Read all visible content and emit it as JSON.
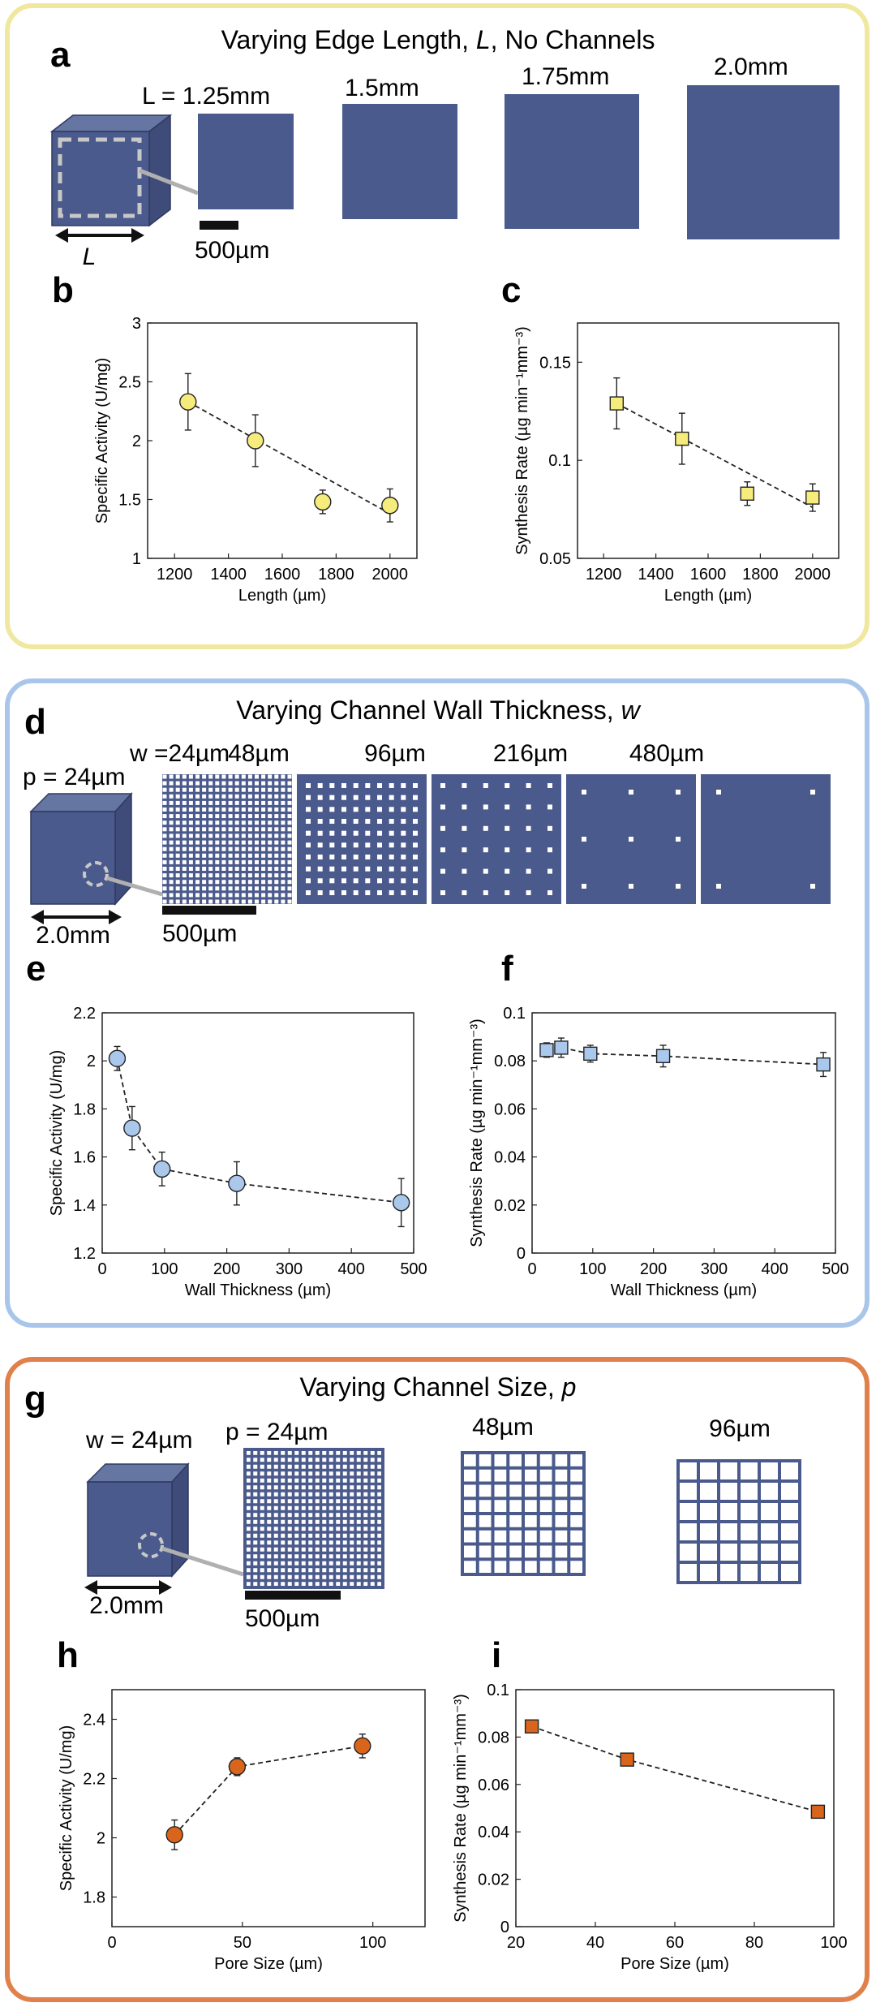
{
  "colors": {
    "block": "#4b5a8c",
    "yellow": "#f6ec7c",
    "blue": "#a9c8ec",
    "orange": "#d9641c",
    "border_a": "#f1e8a0",
    "border_d": "#a9c6ea",
    "border_g": "#e0804a"
  },
  "section_a": {
    "letter": "a",
    "title_pre": "Varying Edge Length, ",
    "title_var": "L",
    "title_post": ", No Channels",
    "dim_symbol": "L",
    "size_labels": [
      "L = 1.25mm",
      "1.5mm",
      "1.75mm",
      "2.0mm"
    ],
    "scale": "500µm"
  },
  "section_d": {
    "letter": "d",
    "title_pre": "Varying Channel Wall Thickness, ",
    "title_var": "w",
    "title_post": "",
    "p_label": "p = 24µm",
    "length_label": "2.0mm",
    "size_labels": [
      "w =24µm",
      "48µm",
      "96µm",
      "216µm",
      "480µm"
    ],
    "scale": "500µm"
  },
  "section_g": {
    "letter": "g",
    "title_pre": "Varying Channel Size, ",
    "title_var": "p",
    "title_post": "",
    "w_label": "w = 24µm",
    "length_label": "2.0mm",
    "size_labels": [
      "p = 24µm",
      "48µm",
      "96µm"
    ],
    "scale": "500µm"
  },
  "chart_data": [
    {
      "id": "b",
      "type": "scatter",
      "marker": "circle",
      "color": "#f6ec7c",
      "xlabel": "Length (µm)",
      "ylabel": "Specific Activity (U/mg)",
      "xlim": [
        1100,
        2100
      ],
      "ylim": [
        1,
        3
      ],
      "xticks": [
        1200,
        1400,
        1600,
        1800,
        2000
      ],
      "yticks": [
        1,
        1.5,
        2,
        2.5,
        3
      ],
      "ytick_labels": [
        "1",
        "1.5",
        "2",
        "2.5",
        "3"
      ],
      "points": [
        {
          "x": 1250,
          "y": 2.33,
          "err": 0.24
        },
        {
          "x": 1500,
          "y": 2.0,
          "err": 0.22
        },
        {
          "x": 1750,
          "y": 1.48,
          "err": 0.1
        },
        {
          "x": 2000,
          "y": 1.45,
          "err": 0.14
        }
      ],
      "fit": [
        [
          1250,
          2.33
        ],
        [
          2000,
          1.38
        ]
      ]
    },
    {
      "id": "c",
      "type": "scatter",
      "marker": "square",
      "color": "#f6ec7c",
      "xlabel": "Length (µm)",
      "ylabel": "Synthesis Rate (µg min⁻¹mm⁻³)",
      "xlim": [
        1100,
        2100
      ],
      "ylim": [
        0.05,
        0.17
      ],
      "xticks": [
        1200,
        1400,
        1600,
        1800,
        2000
      ],
      "yticks": [
        0.05,
        0.1,
        0.15
      ],
      "ytick_labels": [
        "0.05",
        "0.1",
        "0.15"
      ],
      "points": [
        {
          "x": 1250,
          "y": 0.129,
          "err": 0.013
        },
        {
          "x": 1500,
          "y": 0.111,
          "err": 0.013
        },
        {
          "x": 1750,
          "y": 0.083,
          "err": 0.006
        },
        {
          "x": 2000,
          "y": 0.081,
          "err": 0.007
        }
      ],
      "fit": [
        [
          1250,
          0.129
        ],
        [
          2000,
          0.076
        ]
      ]
    },
    {
      "id": "e",
      "type": "scatter",
      "marker": "circle",
      "color": "#a9c8ec",
      "xlabel": "Wall Thickness (µm)",
      "ylabel": "Specific Activity (U/mg)",
      "xlim": [
        0,
        500
      ],
      "ylim": [
        1.2,
        2.2
      ],
      "xticks": [
        0,
        100,
        200,
        300,
        400,
        500
      ],
      "yticks": [
        1.2,
        1.4,
        1.6,
        1.8,
        2,
        2.2
      ],
      "ytick_labels": [
        "1.2",
        "1.4",
        "1.6",
        "1.8",
        "2",
        "2.2"
      ],
      "points": [
        {
          "x": 24,
          "y": 2.01,
          "err": 0.05
        },
        {
          "x": 48,
          "y": 1.72,
          "err": 0.09
        },
        {
          "x": 96,
          "y": 1.55,
          "err": 0.07
        },
        {
          "x": 216,
          "y": 1.49,
          "err": 0.09
        },
        {
          "x": 480,
          "y": 1.41,
          "err": 0.1
        }
      ],
      "fit": [
        [
          24,
          2.01
        ],
        [
          48,
          1.72
        ],
        [
          96,
          1.55
        ],
        [
          216,
          1.49
        ],
        [
          480,
          1.41
        ]
      ]
    },
    {
      "id": "f",
      "type": "scatter",
      "marker": "square",
      "color": "#a9c8ec",
      "xlabel": "Wall Thickness (µm)",
      "ylabel": "Synthesis Rate (µg min⁻¹mm⁻³)",
      "xlim": [
        0,
        500
      ],
      "ylim": [
        0,
        0.1
      ],
      "xticks": [
        0,
        100,
        200,
        300,
        400,
        500
      ],
      "yticks": [
        0,
        0.02,
        0.04,
        0.06,
        0.08,
        0.1
      ],
      "ytick_labels": [
        "0",
        "0.02",
        "0.04",
        "0.06",
        "0.08",
        "0.1"
      ],
      "points": [
        {
          "x": 24,
          "y": 0.0845,
          "err": 0.003
        },
        {
          "x": 48,
          "y": 0.0855,
          "err": 0.004
        },
        {
          "x": 96,
          "y": 0.083,
          "err": 0.0035
        },
        {
          "x": 216,
          "y": 0.082,
          "err": 0.0045
        },
        {
          "x": 480,
          "y": 0.0785,
          "err": 0.005
        }
      ],
      "fit": [
        [
          24,
          0.0845
        ],
        [
          48,
          0.0855
        ],
        [
          96,
          0.083
        ],
        [
          216,
          0.082
        ],
        [
          480,
          0.0785
        ]
      ]
    },
    {
      "id": "h",
      "type": "scatter",
      "marker": "circle",
      "color": "#d9641c",
      "xlabel": "Pore Size (µm)",
      "ylabel": "Specific Activity (U/mg)",
      "xlim": [
        0,
        120
      ],
      "ylim": [
        1.7,
        2.5
      ],
      "xticks": [
        0,
        50,
        100
      ],
      "yticks": [
        1.8,
        2,
        2.2,
        2.4
      ],
      "ytick_labels": [
        "1.8",
        "2",
        "2.2",
        "2.4"
      ],
      "points": [
        {
          "x": 24,
          "y": 2.01,
          "err": 0.05
        },
        {
          "x": 48,
          "y": 2.24,
          "err": 0.03
        },
        {
          "x": 96,
          "y": 2.31,
          "err": 0.04
        }
      ],
      "fit": [
        [
          24,
          2.01
        ],
        [
          48,
          2.24
        ],
        [
          96,
          2.31
        ]
      ]
    },
    {
      "id": "i",
      "type": "scatter",
      "marker": "square",
      "color": "#d9641c",
      "xlabel": "Pore Size (µm)",
      "ylabel": "Synthesis Rate (µg min⁻¹mm⁻³)",
      "xlim": [
        20,
        100
      ],
      "ylim": [
        0,
        0.1
      ],
      "xticks": [
        20,
        40,
        60,
        80,
        100
      ],
      "yticks": [
        0,
        0.02,
        0.04,
        0.06,
        0.08,
        0.1
      ],
      "ytick_labels": [
        "0",
        "0.02",
        "0.04",
        "0.06",
        "0.08",
        "0.1"
      ],
      "points": [
        {
          "x": 24,
          "y": 0.0845,
          "err": 0.002
        },
        {
          "x": 48,
          "y": 0.0705,
          "err": 0.0015
        },
        {
          "x": 96,
          "y": 0.0485,
          "err": 0.0015
        }
      ],
      "fit": [
        [
          24,
          0.0845
        ],
        [
          48,
          0.0705
        ],
        [
          96,
          0.0485
        ]
      ]
    }
  ]
}
